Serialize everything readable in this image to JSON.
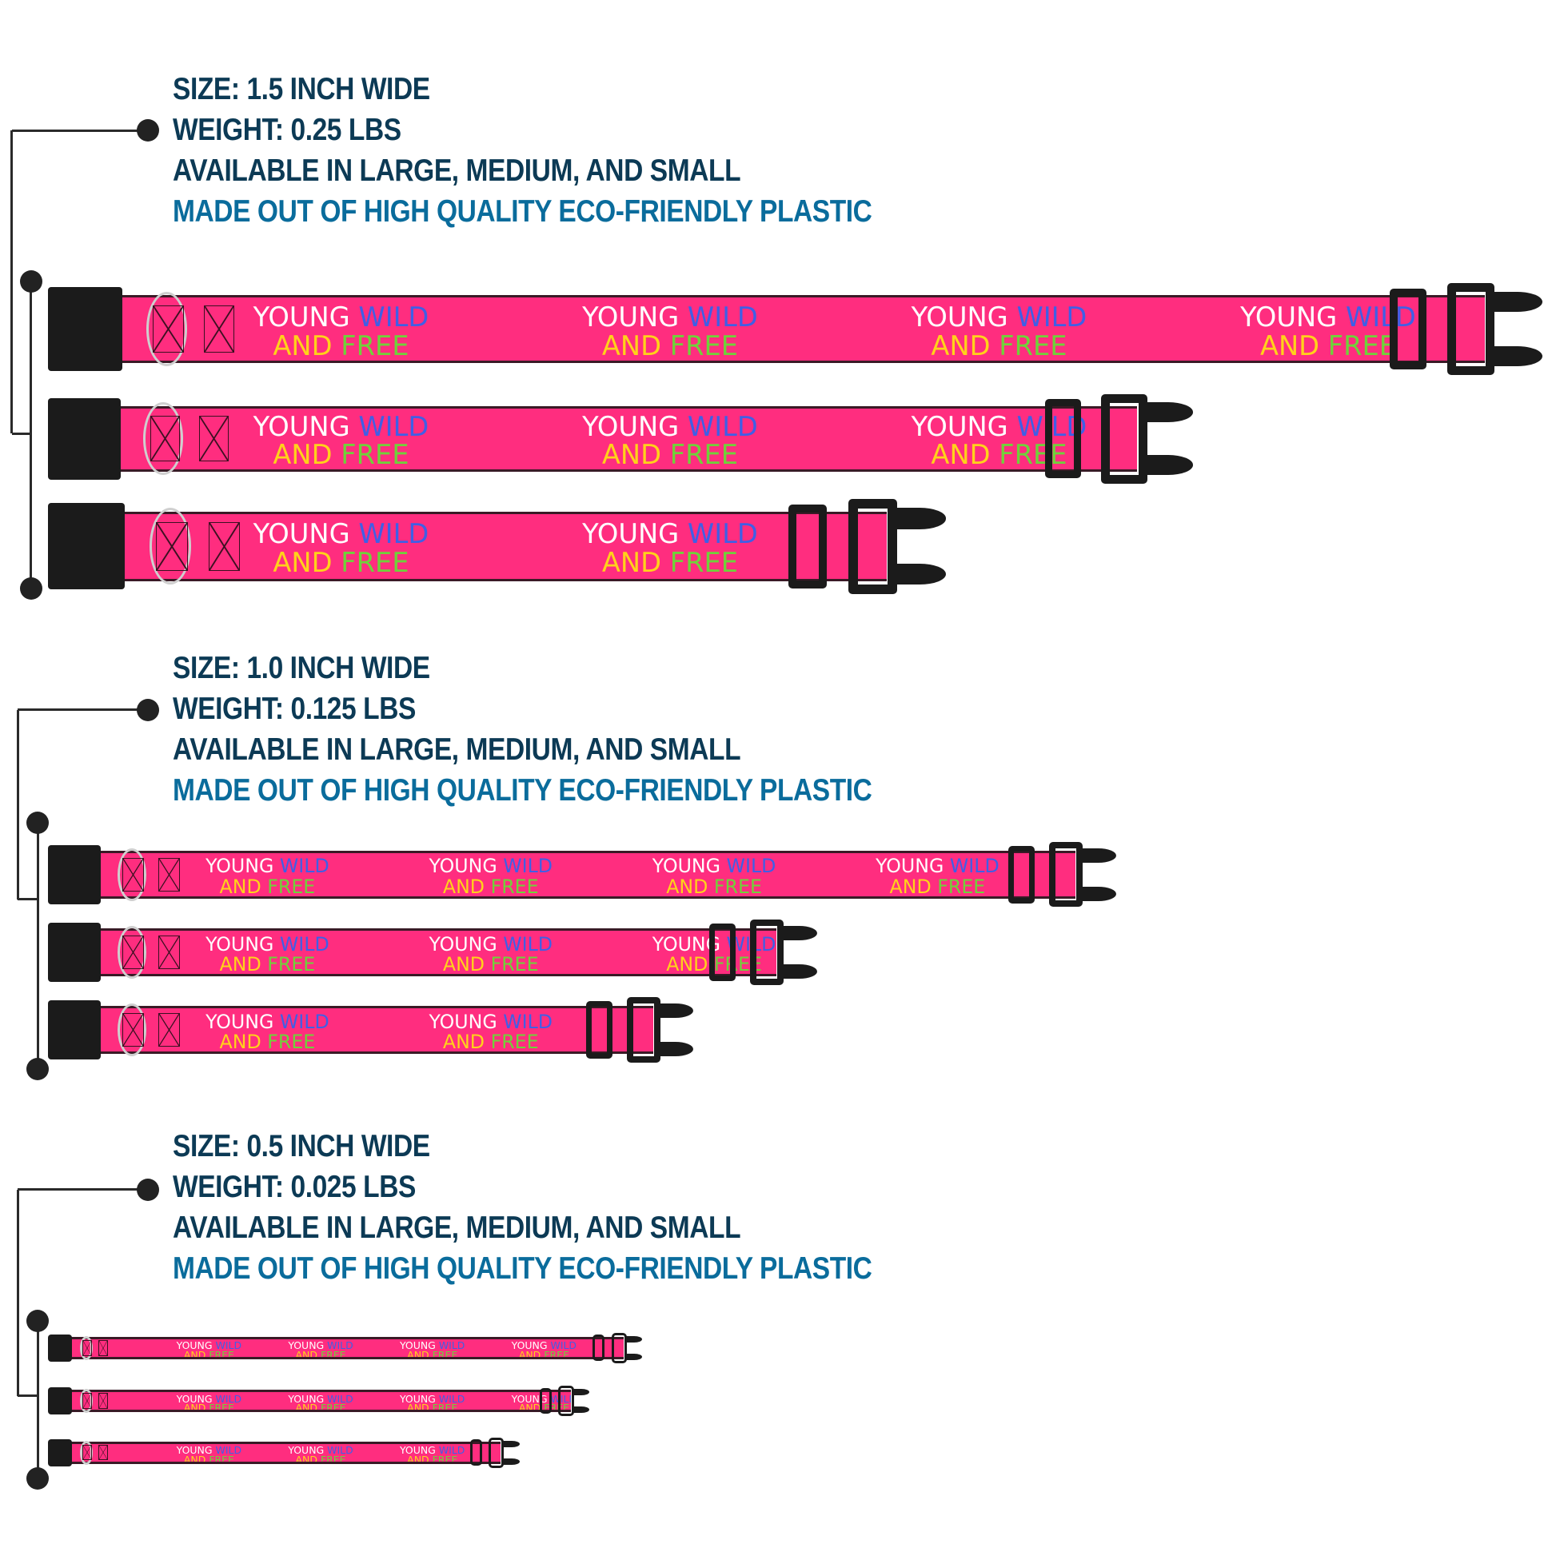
{
  "sections": [
    {
      "size": "SIZE: 1.5 INCH WIDE",
      "weight": "WEIGHT: 0.25 LBS",
      "availability": "AVAILABLE IN LARGE, MEDIUM, AND SMALL",
      "material": "MADE OUT OF HIGH QUALITY ECO-FRIENDLY PLASTIC",
      "collars": [
        "large",
        "medium",
        "small"
      ]
    },
    {
      "size": "SIZE: 1.0 INCH WIDE",
      "weight": "WEIGHT: 0.125 LBS",
      "availability": "AVAILABLE IN LARGE, MEDIUM, AND SMALL",
      "material": "MADE OUT OF HIGH QUALITY ECO-FRIENDLY PLASTIC",
      "collars": [
        "large",
        "medium",
        "small"
      ]
    },
    {
      "size": "SIZE: 0.5 INCH WIDE",
      "weight": "WEIGHT: 0.025 LBS",
      "availability": "AVAILABLE IN LARGE, MEDIUM, AND SMALL",
      "material": "MADE OUT OF HIGH QUALITY ECO-FRIENDLY PLASTIC",
      "collars": [
        "large",
        "medium",
        "small"
      ]
    }
  ],
  "collar_print": {
    "word1": "YOUNG",
    "word2": "WILD",
    "word3": "AND",
    "word4": "FREE"
  },
  "colors": {
    "strap": "#ff2d7f",
    "heading": "#0c3a55",
    "accent": "#0a6c9c",
    "hardware": "#1b1b1b"
  }
}
